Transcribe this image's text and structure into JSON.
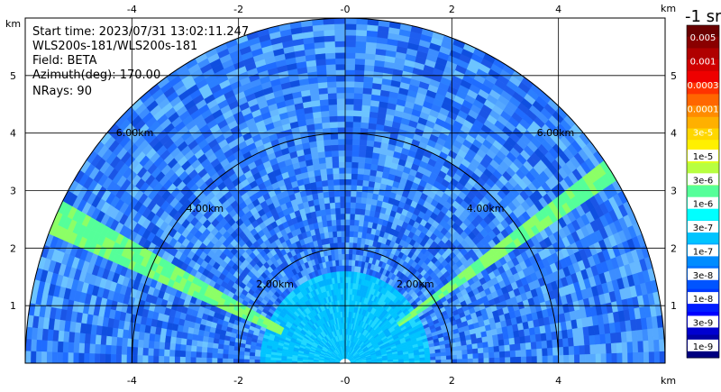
{
  "info": {
    "start_time": "Start time: 2023/07/31 13:02:11.247",
    "instrument": "WLS200s-181/WLS200s-181",
    "field": "Field: BETA",
    "azimuth": "Azimuth(deg): 170.00",
    "nrays": "NRays: 90"
  },
  "chart_data": {
    "type": "heatmap",
    "subtype": "polar RHI scan (half disc)",
    "x_axis": {
      "unit_label": "km",
      "range": [
        -6,
        6
      ],
      "ticks": [
        -4,
        -2,
        0,
        2,
        4
      ],
      "tick_labels": [
        "-4",
        "-2",
        "-0",
        "2",
        "4"
      ]
    },
    "y_axis": {
      "unit_label": "km",
      "range": [
        0,
        6
      ],
      "ticks": [
        1,
        2,
        3,
        4,
        5
      ],
      "tick_labels": [
        "1",
        "2",
        "3",
        "4",
        "5"
      ]
    },
    "range_rings_km": [
      2,
      4,
      6
    ],
    "range_ring_labels": [
      "2.00km",
      "4.00km",
      "6.00km"
    ],
    "grid": true,
    "nrays": 90,
    "colorbar": {
      "title": "-1 sr",
      "labels": [
        "0.005",
        "0.001",
        "0.0003",
        "0.0001",
        "3e-5",
        "1e-5",
        "3e-6",
        "1e-6",
        "3e-7",
        "1e-7",
        "3e-8",
        "1e-8",
        "3e-9",
        "1e-9"
      ],
      "colors": [
        "#6a0000",
        "#8a0000",
        "#b00000",
        "#d00000",
        "#ee0000",
        "#ff3300",
        "#ff6600",
        "#ff8c00",
        "#ffb000",
        "#ffd700",
        "#fff000",
        "#e6ff1a",
        "#b8ff40",
        "#8cff66",
        "#55ff99",
        "#2cffcc",
        "#00ffff",
        "#00e0ff",
        "#00c4ff",
        "#00a8ff",
        "#008cff",
        "#0070ff",
        "#0054ff",
        "#0038ff",
        "#001cff",
        "#0000ff",
        "#0000d0",
        "#0000a4",
        "#000080"
      ]
    },
    "features": [
      {
        "name": "elevated band left",
        "angle_deg": 155,
        "from_km": 1.3,
        "to_km": 6.0
      },
      {
        "name": "elevated band right",
        "angle_deg": 34,
        "from_km": 1.2,
        "to_km": 6.0
      }
    ]
  }
}
